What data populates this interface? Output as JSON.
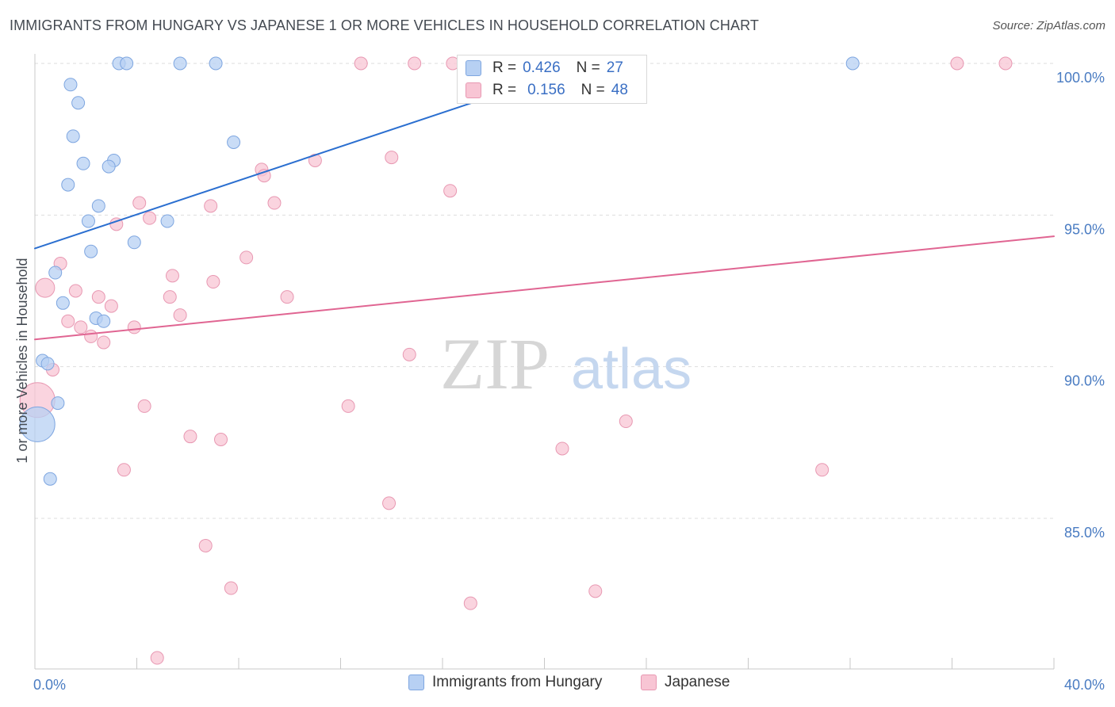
{
  "title": "IMMIGRANTS FROM HUNGARY VS JAPANESE 1 OR MORE VEHICLES IN HOUSEHOLD CORRELATION CHART",
  "source": "Source: ZipAtlas.com",
  "watermark": {
    "zip": "ZIP",
    "atlas": "atlas"
  },
  "colors": {
    "blue_fill": "#b7d0f3",
    "blue_stroke": "#7ea6e0",
    "blue_line": "#2b6fd0",
    "pink_fill": "#f8c5d4",
    "pink_stroke": "#e898b2",
    "pink_line": "#e06592",
    "tick_text": "#4a7cc2",
    "grid": "#dddddd"
  },
  "legend": {
    "series1": {
      "r_label": "R =",
      "r_value": "0.426",
      "n_label": "N =",
      "n_value": "27"
    },
    "series2": {
      "r_label": "R =",
      "r_value": "0.156",
      "n_label": "N =",
      "n_value": "48"
    }
  },
  "chart_data": {
    "type": "scatter",
    "title": "IMMIGRANTS FROM HUNGARY VS JAPANESE 1 OR MORE VEHICLES IN HOUSEHOLD CORRELATION CHART",
    "xlabel": "",
    "ylabel": "1 or more Vehicles in Household",
    "xlim": [
      0,
      40
    ],
    "ylim": [
      80,
      100.5
    ],
    "x_tick_labels": [
      "0.0%",
      "40.0%"
    ],
    "y_ticks": [
      {
        "value": 100,
        "label": "100.0%"
      },
      {
        "value": 95,
        "label": "95.0%"
      },
      {
        "value": 90,
        "label": "90.0%"
      },
      {
        "value": 85,
        "label": "85.0%"
      }
    ],
    "series": [
      {
        "name": "Immigrants from Hungary",
        "color": "#b7d0f3",
        "trend": {
          "x": [
            0,
            21.8
          ],
          "y": [
            93.9,
            100.0
          ]
        },
        "points": [
          {
            "x": 3.3,
            "y": 100.0
          },
          {
            "x": 3.6,
            "y": 100.0
          },
          {
            "x": 5.7,
            "y": 100.0
          },
          {
            "x": 7.1,
            "y": 100.0
          },
          {
            "x": 32.1,
            "y": 100.0
          },
          {
            "x": 1.4,
            "y": 99.3
          },
          {
            "x": 1.7,
            "y": 98.7
          },
          {
            "x": 1.5,
            "y": 97.6
          },
          {
            "x": 7.8,
            "y": 97.4
          },
          {
            "x": 3.1,
            "y": 96.8
          },
          {
            "x": 1.9,
            "y": 96.7
          },
          {
            "x": 2.9,
            "y": 96.6
          },
          {
            "x": 1.3,
            "y": 96.0
          },
          {
            "x": 2.5,
            "y": 95.3
          },
          {
            "x": 2.1,
            "y": 94.8
          },
          {
            "x": 5.2,
            "y": 94.8
          },
          {
            "x": 3.9,
            "y": 94.1
          },
          {
            "x": 2.2,
            "y": 93.8
          },
          {
            "x": 0.8,
            "y": 93.1
          },
          {
            "x": 1.1,
            "y": 92.1
          },
          {
            "x": 2.4,
            "y": 91.6
          },
          {
            "x": 2.7,
            "y": 91.5
          },
          {
            "x": 0.3,
            "y": 90.2
          },
          {
            "x": 0.5,
            "y": 90.1
          },
          {
            "x": 0.9,
            "y": 88.8
          },
          {
            "x": 0.1,
            "y": 88.1,
            "size": "large"
          },
          {
            "x": 0.6,
            "y": 86.3
          }
        ]
      },
      {
        "name": "Japanese",
        "color": "#f8c5d4",
        "trend": {
          "x": [
            0,
            40
          ],
          "y": [
            90.9,
            94.3
          ]
        },
        "points": [
          {
            "x": 12.8,
            "y": 100.0
          },
          {
            "x": 14.9,
            "y": 100.0
          },
          {
            "x": 16.4,
            "y": 100.0
          },
          {
            "x": 36.2,
            "y": 100.0
          },
          {
            "x": 38.1,
            "y": 100.0
          },
          {
            "x": 14.0,
            "y": 96.9
          },
          {
            "x": 11.0,
            "y": 96.8
          },
          {
            "x": 8.9,
            "y": 96.5
          },
          {
            "x": 9.0,
            "y": 96.3
          },
          {
            "x": 16.3,
            "y": 95.8
          },
          {
            "x": 4.1,
            "y": 95.4
          },
          {
            "x": 9.4,
            "y": 95.4
          },
          {
            "x": 6.9,
            "y": 95.3
          },
          {
            "x": 4.5,
            "y": 94.9
          },
          {
            "x": 3.2,
            "y": 94.7
          },
          {
            "x": 8.3,
            "y": 93.6
          },
          {
            "x": 1.0,
            "y": 93.4
          },
          {
            "x": 5.4,
            "y": 93.0
          },
          {
            "x": 7.0,
            "y": 92.8
          },
          {
            "x": 0.4,
            "y": 92.6,
            "size": "medium"
          },
          {
            "x": 1.6,
            "y": 92.5
          },
          {
            "x": 2.5,
            "y": 92.3
          },
          {
            "x": 5.3,
            "y": 92.3
          },
          {
            "x": 9.9,
            "y": 92.3
          },
          {
            "x": 3.0,
            "y": 92.0
          },
          {
            "x": 5.7,
            "y": 91.7
          },
          {
            "x": 1.3,
            "y": 91.5
          },
          {
            "x": 1.8,
            "y": 91.3
          },
          {
            "x": 3.9,
            "y": 91.3
          },
          {
            "x": 2.2,
            "y": 91.0
          },
          {
            "x": 2.7,
            "y": 90.8
          },
          {
            "x": 14.7,
            "y": 90.4
          },
          {
            "x": 0.7,
            "y": 89.9
          },
          {
            "x": 0.1,
            "y": 88.9,
            "size": "large"
          },
          {
            "x": 4.3,
            "y": 88.7
          },
          {
            "x": 12.3,
            "y": 88.7
          },
          {
            "x": 23.2,
            "y": 88.2
          },
          {
            "x": 6.1,
            "y": 87.7
          },
          {
            "x": 7.3,
            "y": 87.6
          },
          {
            "x": 20.7,
            "y": 87.3
          },
          {
            "x": 3.5,
            "y": 86.6
          },
          {
            "x": 30.9,
            "y": 86.6
          },
          {
            "x": 13.9,
            "y": 85.5
          },
          {
            "x": 6.7,
            "y": 84.1
          },
          {
            "x": 7.7,
            "y": 82.7
          },
          {
            "x": 22.0,
            "y": 82.6
          },
          {
            "x": 17.1,
            "y": 82.2
          },
          {
            "x": 4.8,
            "y": 80.4
          }
        ]
      }
    ]
  }
}
